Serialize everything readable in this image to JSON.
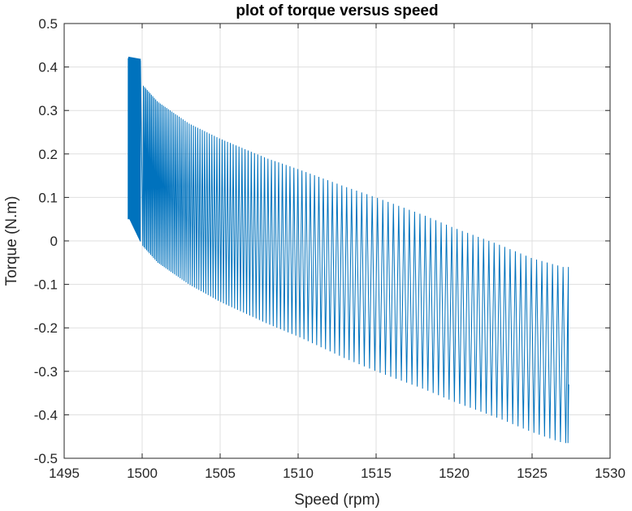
{
  "chart_data": {
    "type": "line",
    "title": "plot of torque versus speed",
    "xlabel": "Speed (rpm)",
    "ylabel": "Torque (N.m)",
    "xlim": [
      1495,
      1530
    ],
    "ylim": [
      -0.5,
      0.5
    ],
    "xticks": [
      1495,
      1500,
      1505,
      1510,
      1515,
      1520,
      1525,
      1530
    ],
    "yticks": [
      -0.5,
      -0.4,
      -0.3,
      -0.2,
      -0.1,
      0,
      0.1,
      0.2,
      0.3,
      0.4,
      0.5
    ],
    "grid": true,
    "series_color": "#0072BD",
    "series": [
      {
        "description": "oscillating torque-speed trajectory; dense band near 1499–1500 rpm, sawtooth oscillation between upper and lower envelopes up to ~1527.3 rpm",
        "upper_envelope": {
          "x": [
            1499.2,
            1500.0,
            1501.0,
            1503.0,
            1505.0,
            1508.0,
            1510.0,
            1513.0,
            1515.0,
            1518.0,
            1520.0,
            1523.0,
            1525.0,
            1527.0
          ],
          "y": [
            0.42,
            0.36,
            0.32,
            0.27,
            0.235,
            0.19,
            0.165,
            0.125,
            0.1,
            0.06,
            0.03,
            -0.01,
            -0.04,
            -0.06
          ]
        },
        "lower_envelope": {
          "x": [
            1499.2,
            1500.0,
            1501.0,
            1503.0,
            1505.0,
            1508.0,
            1510.0,
            1513.0,
            1515.0,
            1518.0,
            1520.0,
            1523.0,
            1525.0,
            1527.0
          ],
          "y": [
            0.05,
            -0.01,
            -0.05,
            -0.1,
            -0.14,
            -0.19,
            -0.22,
            -0.27,
            -0.3,
            -0.34,
            -0.37,
            -0.41,
            -0.44,
            -0.465
          ]
        },
        "plateau": {
          "x": [
            1499.1,
            1499.9
          ],
          "y": [
            0.42,
            0.415
          ]
        },
        "end_point": {
          "x": 1527.35,
          "y": -0.33
        }
      }
    ]
  }
}
